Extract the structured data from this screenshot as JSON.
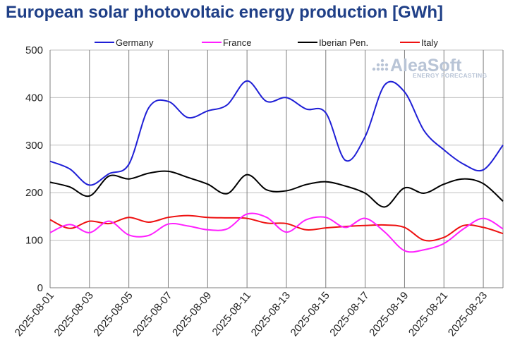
{
  "chart_data": {
    "type": "line",
    "title": "European solar photovoltaic energy production [GWh]",
    "xlabel": "",
    "ylabel": "",
    "ylim": [
      0,
      500
    ],
    "yticks": [
      0,
      100,
      200,
      300,
      400,
      500
    ],
    "x": [
      "2025-08-01",
      "2025-08-02",
      "2025-08-03",
      "2025-08-04",
      "2025-08-05",
      "2025-08-06",
      "2025-08-07",
      "2025-08-08",
      "2025-08-09",
      "2025-08-10",
      "2025-08-11",
      "2025-08-12",
      "2025-08-13",
      "2025-08-14",
      "2025-08-15",
      "2025-08-16",
      "2025-08-17",
      "2025-08-18",
      "2025-08-19",
      "2025-08-20",
      "2025-08-21",
      "2025-08-22",
      "2025-08-23",
      "2025-08-24"
    ],
    "xticks": [
      "2025-08-01",
      "2025-08-03",
      "2025-08-05",
      "2025-08-07",
      "2025-08-09",
      "2025-08-11",
      "2025-08-13",
      "2025-08-15",
      "2025-08-17",
      "2025-08-19",
      "2025-08-21",
      "2025-08-23"
    ],
    "grid": true,
    "legend_position": "top",
    "series": [
      {
        "name": "Germany",
        "color": "#1f1fd6",
        "values": [
          266,
          250,
          216,
          240,
          260,
          378,
          392,
          358,
          372,
          385,
          435,
          392,
          400,
          376,
          368,
          268,
          318,
          427,
          412,
          330,
          290,
          260,
          248,
          300
        ]
      },
      {
        "name": "France",
        "color": "#ff1fff",
        "values": [
          116,
          133,
          116,
          140,
          111,
          110,
          134,
          130,
          122,
          124,
          155,
          148,
          117,
          143,
          148,
          127,
          146,
          117,
          78,
          80,
          93,
          124,
          146,
          124
        ]
      },
      {
        "name": "Iberian Pen.",
        "color": "#000000",
        "values": [
          222,
          212,
          193,
          235,
          229,
          241,
          245,
          232,
          218,
          198,
          238,
          206,
          204,
          217,
          223,
          214,
          199,
          170,
          210,
          199,
          218,
          229,
          219,
          182
        ]
      },
      {
        "name": "Italy",
        "color": "#ee1111",
        "values": [
          143,
          125,
          140,
          135,
          148,
          138,
          148,
          152,
          148,
          147,
          146,
          136,
          135,
          122,
          126,
          129,
          131,
          132,
          127,
          100,
          106,
          131,
          127,
          114
        ]
      }
    ]
  },
  "logo": {
    "name": "AleaSoft",
    "tagline": "ENERGY FORECASTING"
  }
}
